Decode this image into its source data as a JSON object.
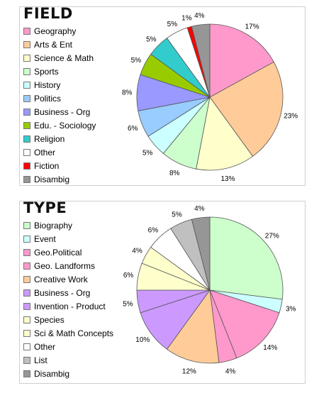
{
  "chart_data": [
    {
      "type": "pie",
      "title": "FIELD",
      "slices": [
        {
          "label": "Geography",
          "value": 17,
          "display": "17%",
          "color": "#ff99cc"
        },
        {
          "label": "Arts & Ent",
          "value": 23,
          "display": "23%",
          "color": "#ffcc99"
        },
        {
          "label": "Science & Math",
          "value": 13,
          "display": "13%",
          "color": "#ffffcc"
        },
        {
          "label": "Sports",
          "value": 8,
          "display": "8%",
          "color": "#ccffcc"
        },
        {
          "label": "History",
          "value": 5,
          "display": "5%",
          "color": "#ccffff"
        },
        {
          "label": "Politics",
          "value": 6,
          "display": "6%",
          "color": "#99ccff"
        },
        {
          "label": "Business - Org",
          "value": 8,
          "display": "8%",
          "color": "#9999ff"
        },
        {
          "label": "Edu. - Sociology",
          "value": 5,
          "display": "5%",
          "color": "#99cc00"
        },
        {
          "label": "Religion",
          "value": 5,
          "display": "5%",
          "color": "#33cccc"
        },
        {
          "label": "Other",
          "value": 5,
          "display": "5%",
          "color": "#ffffff"
        },
        {
          "label": "Fiction",
          "value": 1,
          "display": "1%",
          "color": "#ff0000"
        },
        {
          "label": "Disambig",
          "value": 4,
          "display": "4%",
          "color": "#969696"
        }
      ]
    },
    {
      "type": "pie",
      "title": "TYPE",
      "slices": [
        {
          "label": "Biography",
          "value": 27,
          "display": "27%",
          "color": "#ccffcc"
        },
        {
          "label": "Event",
          "value": 3,
          "display": "3%",
          "color": "#ccffff"
        },
        {
          "label": "Geo.Political",
          "value": 14,
          "display": "14%",
          "color": "#ff99cc"
        },
        {
          "label": "Geo. Landforms",
          "value": 4,
          "display": "4%",
          "color": "#ff99cc"
        },
        {
          "label": "Creative Work",
          "value": 12,
          "display": "12%",
          "color": "#ffcc99"
        },
        {
          "label": "Business - Org",
          "value": 10,
          "display": "10%",
          "color": "#cc99ff"
        },
        {
          "label": "Invention - Product",
          "value": 5,
          "display": "5%",
          "color": "#cc99ff"
        },
        {
          "label": "Species",
          "value": 6,
          "display": "6%",
          "color": "#ffffcc"
        },
        {
          "label": "Sci & Math Concepts",
          "value": 4,
          "display": "4%",
          "color": "#ffffcc"
        },
        {
          "label": "Other",
          "value": 6,
          "display": "6%",
          "color": "#ffffff"
        },
        {
          "label": "List",
          "value": 5,
          "display": "5%",
          "color": "#c0c0c0"
        },
        {
          "label": "Disambig",
          "value": 4,
          "display": "4%",
          "color": "#969696"
        }
      ]
    }
  ]
}
